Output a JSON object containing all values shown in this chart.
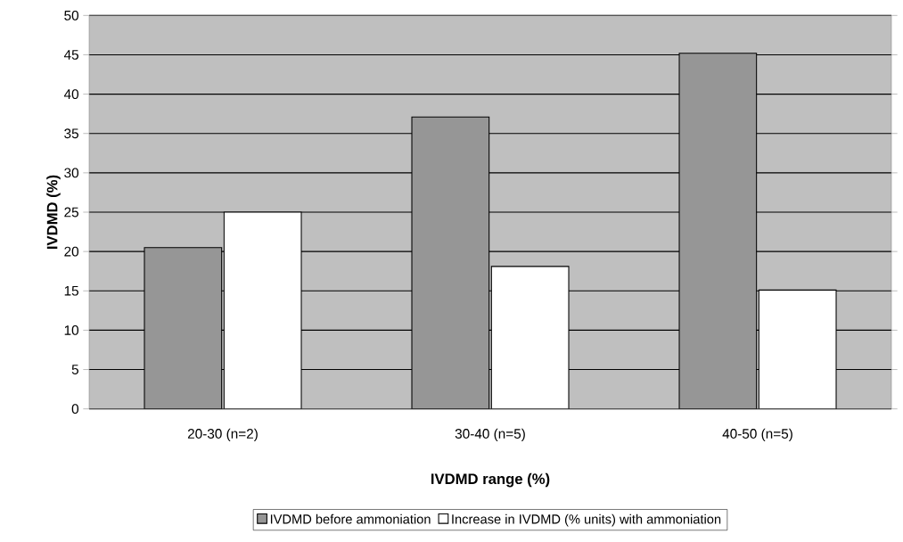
{
  "chart_data": {
    "type": "bar",
    "xlabel": "IVDMD range (%)",
    "ylabel": "IVDMD (%)",
    "categories": [
      "20-30 (n=2)",
      "30-40 (n=5)",
      "40-50 (n=5)"
    ],
    "series": [
      {
        "name": "IVDMD before ammoniation",
        "color": "#969696",
        "values": [
          20.5,
          37.1,
          45.2
        ]
      },
      {
        "name": "Increase in IVDMD (% units) with ammoniation",
        "color": "#ffffff",
        "values": [
          25.0,
          18.1,
          15.1
        ]
      }
    ],
    "ylim": [
      0,
      50
    ],
    "yticks": [
      0,
      5,
      10,
      15,
      20,
      25,
      30,
      35,
      40,
      45,
      50
    ],
    "grid": "y",
    "legend": "bottom"
  }
}
